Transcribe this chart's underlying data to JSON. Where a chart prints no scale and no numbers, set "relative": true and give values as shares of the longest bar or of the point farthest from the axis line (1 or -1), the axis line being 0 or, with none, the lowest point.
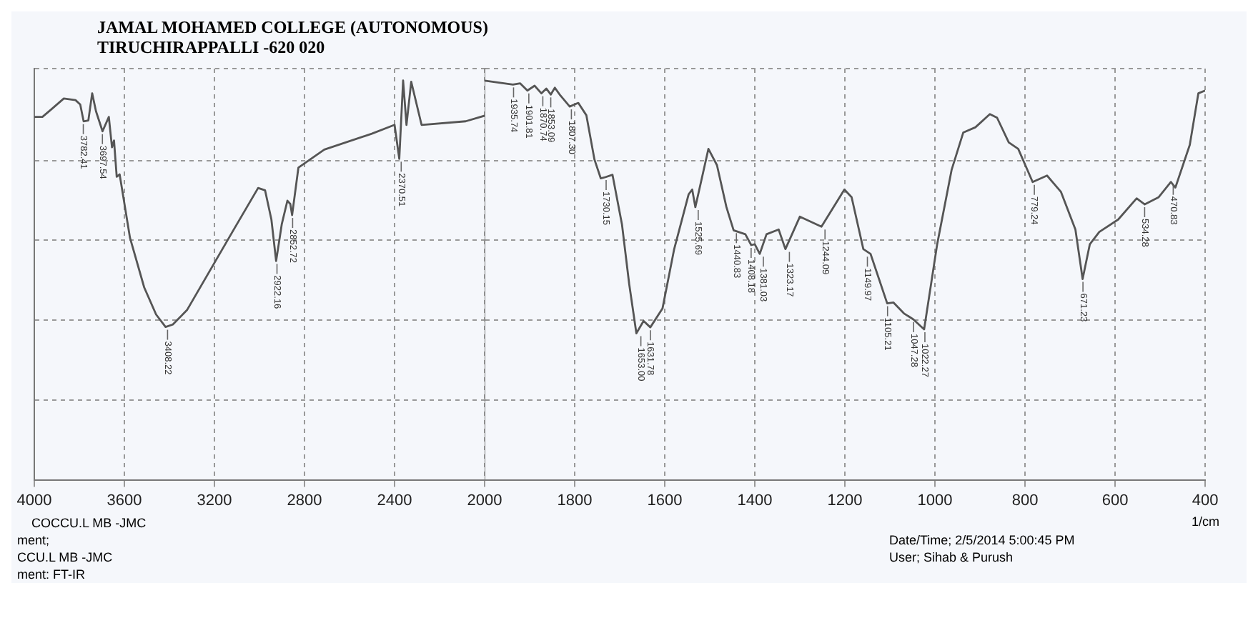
{
  "chart_data": [
    {
      "type": "line",
      "title": "JAMAL MOHAMED COLLEGE (AUTONOMOUS)",
      "subtitle": "TIRUCHIRAPPALLI -620 020",
      "relative": true,
      "grid": true,
      "xlim": [
        4000,
        2000
      ],
      "xticks": [
        4000,
        3600,
        3200,
        2800,
        2400,
        2000
      ],
      "series": [
        {
          "color": "#555555",
          "x": [
            4000,
            3964,
            3922,
            3869,
            3817,
            3796,
            3781,
            3760,
            3743,
            3726,
            3697,
            3669,
            3655,
            3646,
            3634,
            3621,
            3575,
            3512,
            3459,
            3417,
            3385,
            3322,
            3217,
            3112,
            3006,
            2975,
            2947,
            2926,
            2901,
            2876,
            2863,
            2855,
            2827,
            2712,
            2501,
            2400,
            2379,
            2362,
            2347,
            2326,
            2280,
            2084,
            2000
          ],
          "values": [
            0.909,
            0.909,
            0.929,
            0.955,
            0.951,
            0.94,
            0.898,
            0.9,
            0.968,
            0.923,
            0.873,
            0.909,
            0.833,
            0.85,
            0.759,
            0.765,
            0.606,
            0.482,
            0.414,
            0.383,
            0.389,
            0.425,
            0.527,
            0.629,
            0.731,
            0.725,
            0.652,
            0.548,
            0.64,
            0.699,
            0.691,
            0.663,
            0.782,
            0.827,
            0.867,
            0.889,
            0.804,
            1.0,
            0.889,
            0.997,
            0.889,
            0.898,
            0.912
          ]
        }
      ],
      "annotations": [
        {
          "text": "3782.41",
          "x": 3782.41,
          "y": 0.898
        },
        {
          "text": "3697.54",
          "x": 3697.54,
          "y": 0.873
        },
        {
          "text": "3408.22",
          "x": 3408.22,
          "y": 0.383
        },
        {
          "text": "2922.16",
          "x": 2922.16,
          "y": 0.548
        },
        {
          "text": "2852.72",
          "x": 2852.72,
          "y": 0.663
        },
        {
          "text": "2370.51",
          "x": 2370.51,
          "y": 0.804
        },
        "COCCU.L  MB -JMC",
        "ment;",
        "Date/Time;   2/5/2014 5:00:45 PM",
        "CCU.L  MB -JMC",
        "User;   Sihab & Purush",
        "ment: FT-IR"
      ]
    },
    {
      "type": "line",
      "xlabel": "1/cm",
      "relative": true,
      "grid": true,
      "xlim": [
        2000,
        400
      ],
      "xticks": [
        1800,
        1600,
        1400,
        1200,
        1000,
        800,
        600,
        400
      ],
      "series": [
        {
          "color": "#555555",
          "x": [
            2000,
            1937,
            1921,
            1905,
            1889,
            1874,
            1863,
            1853,
            1844,
            1832,
            1811,
            1792,
            1774,
            1756,
            1742,
            1732,
            1716,
            1695,
            1679,
            1663,
            1647,
            1632,
            1605,
            1579,
            1547,
            1539,
            1532,
            1503,
            1484,
            1463,
            1447,
            1421,
            1408,
            1400,
            1389,
            1374,
            1347,
            1332,
            1300,
            1252,
            1201,
            1185,
            1159,
            1143,
            1106,
            1092,
            1069,
            1048,
            1024,
            995,
            963,
            937,
            910,
            878,
            862,
            836,
            815,
            783,
            751,
            720,
            688,
            672,
            656,
            635,
            593,
            552,
            534,
            503,
            476,
            466,
            434,
            415,
            400
          ],
          "values": [
            1.0,
            0.99,
            0.993,
            0.975,
            0.987,
            0.968,
            0.98,
            0.965,
            0.982,
            0.963,
            0.935,
            0.944,
            0.913,
            0.802,
            0.755,
            0.758,
            0.764,
            0.64,
            0.491,
            0.367,
            0.398,
            0.382,
            0.429,
            0.578,
            0.715,
            0.727,
            0.683,
            0.829,
            0.788,
            0.683,
            0.625,
            0.615,
            0.588,
            0.59,
            0.566,
            0.615,
            0.627,
            0.578,
            0.659,
            0.634,
            0.727,
            0.708,
            0.578,
            0.566,
            0.442,
            0.444,
            0.417,
            0.402,
            0.377,
            0.59,
            0.776,
            0.87,
            0.883,
            0.916,
            0.907,
            0.845,
            0.829,
            0.746,
            0.762,
            0.721,
            0.627,
            0.503,
            0.59,
            0.621,
            0.652,
            0.705,
            0.69,
            0.708,
            0.746,
            0.732,
            0.839,
            0.968,
            0.975
          ]
        }
      ],
      "annotations": [
        {
          "text": "1935.74",
          "x": 1935.74,
          "y": 0.99
        },
        {
          "text": "1901.81",
          "x": 1901.81,
          "y": 0.975
        },
        {
          "text": "1870.74",
          "x": 1870.74,
          "y": 0.968
        },
        {
          "text": "1853.09",
          "x": 1853.09,
          "y": 0.965
        },
        {
          "text": "1807.30",
          "x": 1807.3,
          "y": 0.935
        },
        {
          "text": "1730.15",
          "x": 1730.15,
          "y": 0.758
        },
        {
          "text": "1653.00",
          "x": 1653.0,
          "y": 0.367
        },
        {
          "text": "1631.78",
          "x": 1631.78,
          "y": 0.382
        },
        {
          "text": "1525.69",
          "x": 1525.69,
          "y": 0.683
        },
        {
          "text": "1440.83",
          "x": 1440.83,
          "y": 0.625
        },
        {
          "text": "1408.18",
          "x": 1408.18,
          "y": 0.588
        },
        {
          "text": "1381.03",
          "x": 1381.03,
          "y": 0.566
        },
        {
          "text": "1323.17",
          "x": 1323.17,
          "y": 0.578
        },
        {
          "text": "1244.09",
          "x": 1244.09,
          "y": 0.634
        },
        {
          "text": "1149.97",
          "x": 1149.97,
          "y": 0.566
        },
        {
          "text": "1105.21",
          "x": 1105.21,
          "y": 0.442
        },
        {
          "text": "1047.28",
          "x": 1047.28,
          "y": 0.402
        },
        {
          "text": "1022.27",
          "x": 1022.27,
          "y": 0.377
        },
        {
          "text": "779.24",
          "x": 779.24,
          "y": 0.746
        },
        {
          "text": "671.23",
          "x": 671.23,
          "y": 0.503
        },
        {
          "text": "534.28",
          "x": 534.28,
          "y": 0.69
        },
        {
          "text": "470.83",
          "x": 470.83,
          "y": 0.746
        }
      ]
    }
  ]
}
